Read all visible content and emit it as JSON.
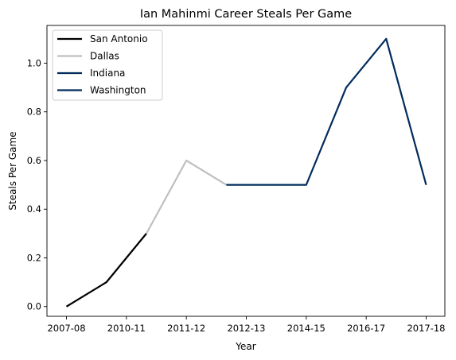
{
  "chart_data": {
    "type": "line",
    "title": "Ian Mahinmi Career Steals Per Game",
    "xlabel": "Year",
    "ylabel": "Steals Per Game",
    "x_tick_labels": [
      "2007-08",
      "2010-11",
      "2011-12",
      "2012-13",
      "2014-15",
      "2016-17",
      "2017-18"
    ],
    "ylim": [
      -0.04,
      1.155
    ],
    "y_ticks": [
      0.0,
      0.2,
      0.4,
      0.6,
      0.8,
      1.0
    ],
    "y_tick_labels": [
      "0.0",
      "0.2",
      "0.4",
      "0.6",
      "0.8",
      "1.0"
    ],
    "grid": false,
    "legend_position": "top-left",
    "series": [
      {
        "name": "San Antonio",
        "color": "#000000",
        "points": [
          [
            0,
            0.0
          ],
          [
            1,
            0.1
          ],
          [
            2,
            0.3
          ]
        ]
      },
      {
        "name": "Dallas",
        "color": "#bfbfbf",
        "points": [
          [
            2,
            0.3
          ],
          [
            3,
            0.6
          ],
          [
            4,
            0.5
          ]
        ]
      },
      {
        "name": "Indiana",
        "color": "#002b5c",
        "points": [
          [
            4,
            0.5
          ],
          [
            5,
            0.5
          ],
          [
            6,
            0.5
          ],
          [
            7,
            0.9
          ],
          [
            8,
            1.1
          ],
          [
            9,
            0.5
          ]
        ]
      },
      {
        "name": "Washington",
        "color": "#002b5c",
        "points": [
          [
            9,
            0.5
          ]
        ]
      }
    ]
  }
}
